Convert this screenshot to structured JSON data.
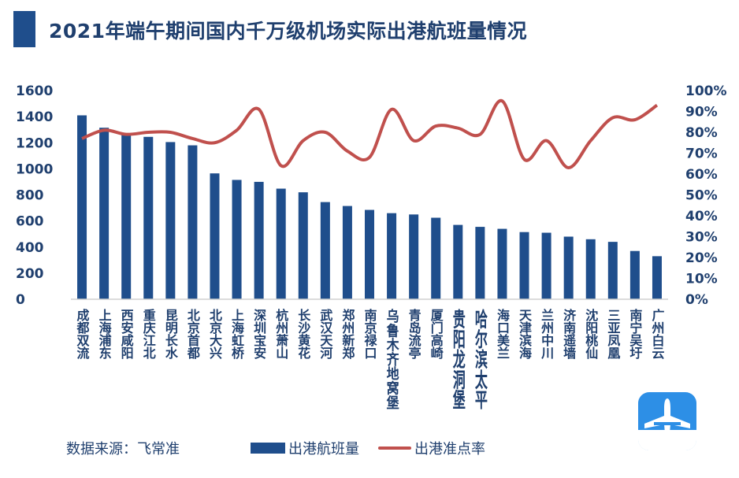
{
  "title": "2021年端午期间国内千万级机场实际出港航班量情况",
  "source_label": "数据来源：飞常准",
  "colors": {
    "bar": "#1f4e8c",
    "line": "#c0504d",
    "text": "#1f3f6e",
    "axis": "#d0d0d0"
  },
  "logo": {
    "icon": "airplane-icon"
  },
  "chart_data": {
    "type": "bar",
    "categories": [
      "成都双流",
      "上海浦东",
      "西安咸阳",
      "重庆江北",
      "昆明长水",
      "北京首都",
      "北京大兴",
      "上海虹桥",
      "深圳宝安",
      "杭州萧山",
      "长沙黄花",
      "武汉天河",
      "郑州新郑",
      "南京禄口",
      "乌鲁木齐地窝堡",
      "青岛流亭",
      "厦门高崎",
      "贵阳龙洞堡",
      "哈尔滨太平",
      "海口美兰",
      "天津滨海",
      "兰州中川",
      "济南遥墙",
      "沈阳桃仙",
      "三亚凤凰",
      "南宁吴圩",
      "广州白云"
    ],
    "series": [
      {
        "name": "出港航班量",
        "type": "bar",
        "axis": "left",
        "values": [
          1410,
          1315,
          1265,
          1245,
          1205,
          1180,
          965,
          915,
          900,
          848,
          820,
          745,
          715,
          685,
          660,
          650,
          625,
          570,
          555,
          540,
          515,
          510,
          480,
          460,
          440,
          370,
          330
        ]
      },
      {
        "name": "出港准点率",
        "type": "line",
        "axis": "right",
        "values": [
          0.77,
          0.81,
          0.79,
          0.8,
          0.8,
          0.77,
          0.75,
          0.81,
          0.91,
          0.64,
          0.76,
          0.8,
          0.71,
          0.68,
          0.91,
          0.76,
          0.83,
          0.82,
          0.79,
          0.95,
          0.67,
          0.76,
          0.63,
          0.76,
          0.87,
          0.86,
          0.93
        ]
      }
    ],
    "y_left": {
      "min": 0,
      "max": 1600,
      "ticks": [
        "0",
        "200",
        "400",
        "600",
        "800",
        "1000",
        "1200",
        "1400",
        "1600"
      ]
    },
    "y_right": {
      "min": 0,
      "max": 1,
      "ticks": [
        "0%",
        "10%",
        "20%",
        "30%",
        "40%",
        "50%",
        "60%",
        "70%",
        "80%",
        "90%",
        "100%"
      ]
    },
    "grid": false,
    "legend_position": "bottom"
  }
}
